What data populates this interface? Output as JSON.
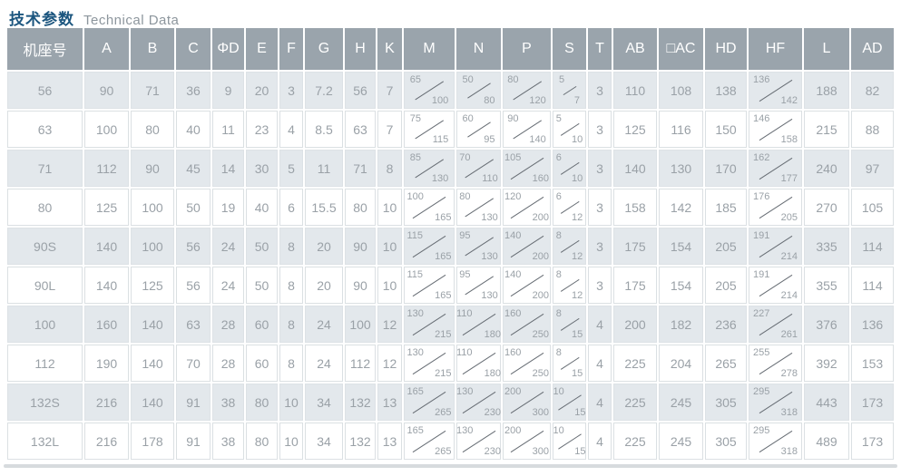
{
  "title": {
    "zh": "技术参数",
    "en": "Technical Data"
  },
  "colors": {
    "title": "#1c567f",
    "subtitle": "#8d969d",
    "header_bg": "#9aa4ac",
    "header_text": "#ffffff",
    "row_alt_bg": "#e3e8ec",
    "row_bg": "#ffffff",
    "cell_text": "#9aa1a7",
    "divider_bar": "#d7dbde"
  },
  "table": {
    "columns": [
      "机座号",
      "A",
      "B",
      "C",
      "ΦD",
      "E",
      "F",
      "G",
      "H",
      "K",
      "M",
      "N",
      "P",
      "S",
      "T",
      "AB",
      "□AC",
      "HD",
      "HF",
      "L",
      "AD"
    ],
    "rows": [
      [
        "56",
        "90",
        "71",
        "36",
        "9",
        "20",
        "3",
        "7.2",
        "56",
        "7",
        "65/100",
        "50/80",
        "80/120",
        "5/7",
        "3",
        "110",
        "108",
        "138",
        "136/142",
        "188",
        "82"
      ],
      [
        "63",
        "100",
        "80",
        "40",
        "11",
        "23",
        "4",
        "8.5",
        "63",
        "7",
        "75/115",
        "60/95",
        "90/140",
        "5/10",
        "3",
        "125",
        "116",
        "150",
        "146/158",
        "215",
        "88"
      ],
      [
        "71",
        "112",
        "90",
        "45",
        "14",
        "30",
        "5",
        "11",
        "71",
        "8",
        "85/130",
        "70/110",
        "105/160",
        "6/10",
        "3",
        "140",
        "130",
        "170",
        "162/177",
        "240",
        "97"
      ],
      [
        "80",
        "125",
        "100",
        "50",
        "19",
        "40",
        "6",
        "15.5",
        "80",
        "10",
        "100/165",
        "80/130",
        "120/200",
        "6/12",
        "3",
        "158",
        "142",
        "185",
        "176/205",
        "270",
        "105"
      ],
      [
        "90S",
        "140",
        "100",
        "56",
        "24",
        "50",
        "8",
        "20",
        "90",
        "10",
        "115/165",
        "95/130",
        "140/200",
        "8/12",
        "3",
        "175",
        "154",
        "205",
        "191/214",
        "335",
        "114"
      ],
      [
        "90L",
        "140",
        "125",
        "56",
        "24",
        "50",
        "8",
        "20",
        "90",
        "10",
        "115/165",
        "95/130",
        "140/200",
        "8/12",
        "3",
        "175",
        "154",
        "205",
        "191/214",
        "355",
        "114"
      ],
      [
        "100",
        "160",
        "140",
        "63",
        "28",
        "60",
        "8",
        "24",
        "100",
        "12",
        "130/215",
        "110/180",
        "160/250",
        "8/15",
        "4",
        "200",
        "182",
        "236",
        "227/261",
        "376",
        "136"
      ],
      [
        "112",
        "190",
        "140",
        "70",
        "28",
        "60",
        "8",
        "24",
        "112",
        "12",
        "130/215",
        "110/180",
        "160/250",
        "8/15",
        "4",
        "225",
        "204",
        "265",
        "255/278",
        "392",
        "153"
      ],
      [
        "132S",
        "216",
        "140",
        "91",
        "38",
        "80",
        "10",
        "34",
        "132",
        "13",
        "165/265",
        "130/230",
        "200/300",
        "10/15",
        "4",
        "225",
        "245",
        "305",
        "295/318",
        "443",
        "173"
      ],
      [
        "132L",
        "216",
        "178",
        "91",
        "38",
        "80",
        "10",
        "34",
        "132",
        "13",
        "165/265",
        "130/230",
        "200/300",
        "10/15",
        "4",
        "225",
        "245",
        "305",
        "295/318",
        "489",
        "173"
      ]
    ]
  }
}
